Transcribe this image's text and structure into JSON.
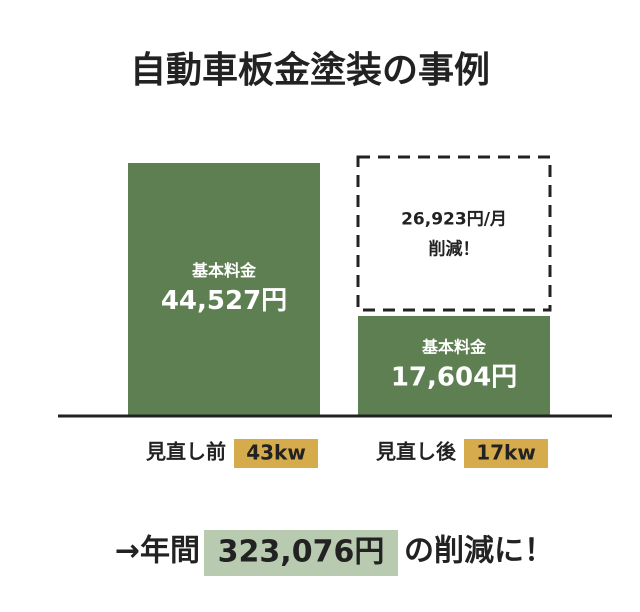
{
  "chart_data": {
    "type": "bar",
    "title": "自動車板金塗装の事例",
    "categories": [
      "見直し前",
      "見直し後"
    ],
    "category_badges": [
      "43kw",
      "17kw"
    ],
    "bar_label": "基本料金",
    "values": [
      44527,
      17604
    ],
    "value_labels": [
      "44,527円",
      "17,604円"
    ],
    "color": "#5e7f52",
    "badge_color": "#d6ab4c",
    "reduction": {
      "value": 26923,
      "label": "26,923円/月",
      "note": "削減！"
    },
    "footer": {
      "prefix": "→年間",
      "highlight": "323,076円",
      "suffix": "の削減に！",
      "highlight_color": "#b8cbb0"
    }
  }
}
